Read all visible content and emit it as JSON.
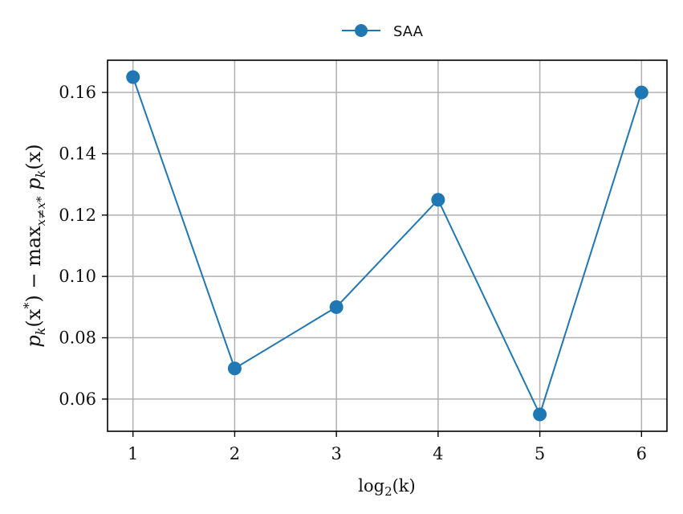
{
  "chart_data": {
    "type": "line",
    "x": [
      1,
      2,
      3,
      4,
      5,
      6
    ],
    "series": [
      {
        "name": "SAA",
        "color": "#1f77b4",
        "values": [
          0.165,
          0.07,
          0.09,
          0.125,
          0.055,
          0.16
        ]
      }
    ],
    "xlabel": {
      "base": "log",
      "sub": "2",
      "arg": "(k)"
    },
    "ylabel": {
      "p1": "p",
      "p1_sub": "k",
      "p1_arg": "(x",
      "p1_sup": "*",
      "p1_close": ") − max",
      "max_sub": "x≠x*",
      "p2": " p",
      "p2_sub": "k",
      "p2_arg": "(x)"
    },
    "xticks": [
      "1",
      "2",
      "3",
      "4",
      "5",
      "6"
    ],
    "yticks": [
      "0.06",
      "0.08",
      "0.10",
      "0.12",
      "0.14",
      "0.16"
    ],
    "xlim": [
      0.75,
      6.25
    ],
    "ylim": [
      0.0495,
      0.1705
    ],
    "grid": true,
    "legend_position": "top-center"
  }
}
